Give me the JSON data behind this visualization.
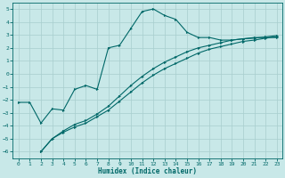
{
  "xlabel": "Humidex (Indice chaleur)",
  "bg_color": "#c8e8e8",
  "grid_color": "#a8cece",
  "line_color": "#006868",
  "xlim": [
    -0.5,
    23.5
  ],
  "ylim": [
    -6.5,
    5.5
  ],
  "xticks": [
    0,
    1,
    2,
    3,
    4,
    5,
    6,
    7,
    8,
    9,
    10,
    11,
    12,
    13,
    14,
    15,
    16,
    17,
    18,
    19,
    20,
    21,
    22,
    23
  ],
  "yticks": [
    -6,
    -5,
    -4,
    -3,
    -2,
    -1,
    0,
    1,
    2,
    3,
    4,
    5
  ],
  "line1_x": [
    0,
    1,
    2,
    3,
    4,
    5,
    6,
    7,
    8,
    9,
    10,
    11,
    12,
    13,
    14,
    15,
    16,
    17,
    18,
    19,
    20,
    21,
    22,
    23
  ],
  "line1_y": [
    -2.2,
    -2.2,
    -3.8,
    -2.7,
    -2.8,
    -1.2,
    -0.9,
    -1.2,
    2.0,
    2.2,
    3.5,
    4.8,
    5.0,
    4.5,
    4.2,
    3.2,
    2.8,
    2.8,
    2.6,
    2.6,
    2.7,
    2.8,
    2.8,
    2.8
  ],
  "line2_x": [
    2,
    3,
    4,
    5,
    6,
    7,
    8,
    9,
    10,
    11,
    12,
    13,
    14,
    15,
    16,
    17,
    18,
    19,
    20,
    21,
    22,
    23
  ],
  "line2_y": [
    -6.0,
    -5.0,
    -4.5,
    -4.1,
    -3.8,
    -3.3,
    -2.8,
    -2.1,
    -1.4,
    -0.7,
    -0.1,
    0.4,
    0.8,
    1.2,
    1.6,
    1.9,
    2.1,
    2.3,
    2.5,
    2.6,
    2.75,
    2.85
  ],
  "line3_x": [
    2,
    3,
    4,
    5,
    6,
    7,
    8,
    9,
    10,
    11,
    12,
    13,
    14,
    15,
    16,
    17,
    18,
    19,
    20,
    21,
    22,
    23
  ],
  "line3_y": [
    -6.0,
    -5.0,
    -4.4,
    -3.9,
    -3.6,
    -3.1,
    -2.5,
    -1.7,
    -0.9,
    -0.2,
    0.4,
    0.9,
    1.3,
    1.7,
    2.0,
    2.2,
    2.4,
    2.6,
    2.7,
    2.75,
    2.85,
    2.95
  ]
}
